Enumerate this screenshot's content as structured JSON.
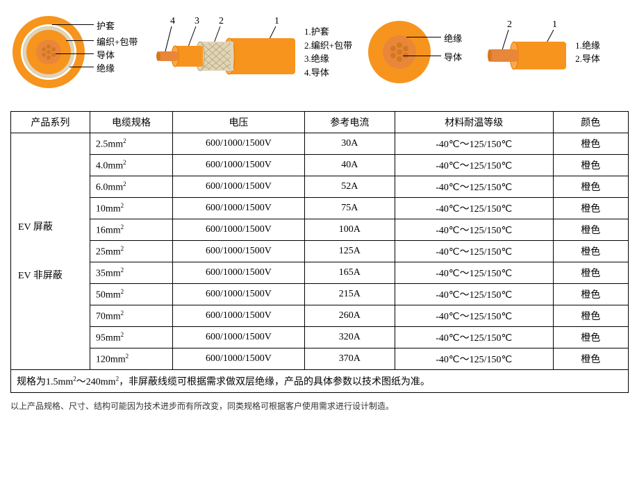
{
  "colors": {
    "orange": "#f7941d",
    "orange_light": "#faa84a",
    "white": "#ffffff",
    "conductor": "#e8863a",
    "braid": "#e0d4b8",
    "black": "#000000"
  },
  "diagram1": {
    "cross_labels": [
      "护套",
      "编织+包带",
      "导体",
      "绝缘"
    ],
    "side_numbers": [
      "4",
      "3",
      "2",
      "1"
    ],
    "legend": [
      "1.护套",
      "2.编织+包带",
      "3.绝缘",
      "4.导体"
    ]
  },
  "diagram2": {
    "cross_labels": [
      "绝缘",
      "导体"
    ],
    "side_numbers": [
      "2",
      "1"
    ],
    "legend": [
      "1.绝缘",
      "2.导体"
    ]
  },
  "table": {
    "headers": [
      "产品系列",
      "电缆规格",
      "电压",
      "参考电流",
      "材料耐温等级",
      "颜色"
    ],
    "series": [
      "EV 屏蔽",
      "EV 非屏蔽"
    ],
    "rows": [
      {
        "spec": "2.5mm²",
        "voltage": "600/1000/1500V",
        "current": "30A",
        "temp": "-40℃～125/150℃",
        "color": "橙色"
      },
      {
        "spec": "4.0mm²",
        "voltage": "600/1000/1500V",
        "current": "40A",
        "temp": "-40℃～125/150℃",
        "color": "橙色"
      },
      {
        "spec": "6.0mm²",
        "voltage": "600/1000/1500V",
        "current": "52A",
        "temp": "-40℃～125/150℃",
        "color": "橙色"
      },
      {
        "spec": "10mm²",
        "voltage": "600/1000/1500V",
        "current": "75A",
        "temp": "-40℃～125/150℃",
        "color": "橙色"
      },
      {
        "spec": "16mm²",
        "voltage": "600/1000/1500V",
        "current": "100A",
        "temp": "-40℃～125/150℃",
        "color": "橙色"
      },
      {
        "spec": "25mm²",
        "voltage": "600/1000/1500V",
        "current": "125A",
        "temp": "-40℃～125/150℃",
        "color": "橙色"
      },
      {
        "spec": "35mm²",
        "voltage": "600/1000/1500V",
        "current": "165A",
        "temp": "-40℃～125/150℃",
        "color": "橙色"
      },
      {
        "spec": "50mm²",
        "voltage": "600/1000/1500V",
        "current": "215A",
        "temp": "-40℃～125/150℃",
        "color": "橙色"
      },
      {
        "spec": "70mm²",
        "voltage": "600/1000/1500V",
        "current": "260A",
        "temp": "-40℃～125/150℃",
        "color": "橙色"
      },
      {
        "spec": "95mm²",
        "voltage": "600/1000/1500V",
        "current": "320A",
        "temp": "-40℃～125/150℃",
        "color": "橙色"
      },
      {
        "spec": "120mm²",
        "voltage": "600/1000/1500V",
        "current": "370A",
        "temp": "-40℃～125/150℃",
        "color": "橙色"
      }
    ],
    "note": "规格为1.5mm²～240mm²，非屏蔽线缆可根据需求做双层绝缘，产品的具体参数以技术图纸为准。"
  },
  "footnote": "以上产品规格、尺寸、结构可能因为技术进步而有所改变，同类规格可根据客户使用需求进行设计制造。",
  "col_widths": [
    "105",
    "110",
    "175",
    "120",
    "210",
    "100"
  ]
}
